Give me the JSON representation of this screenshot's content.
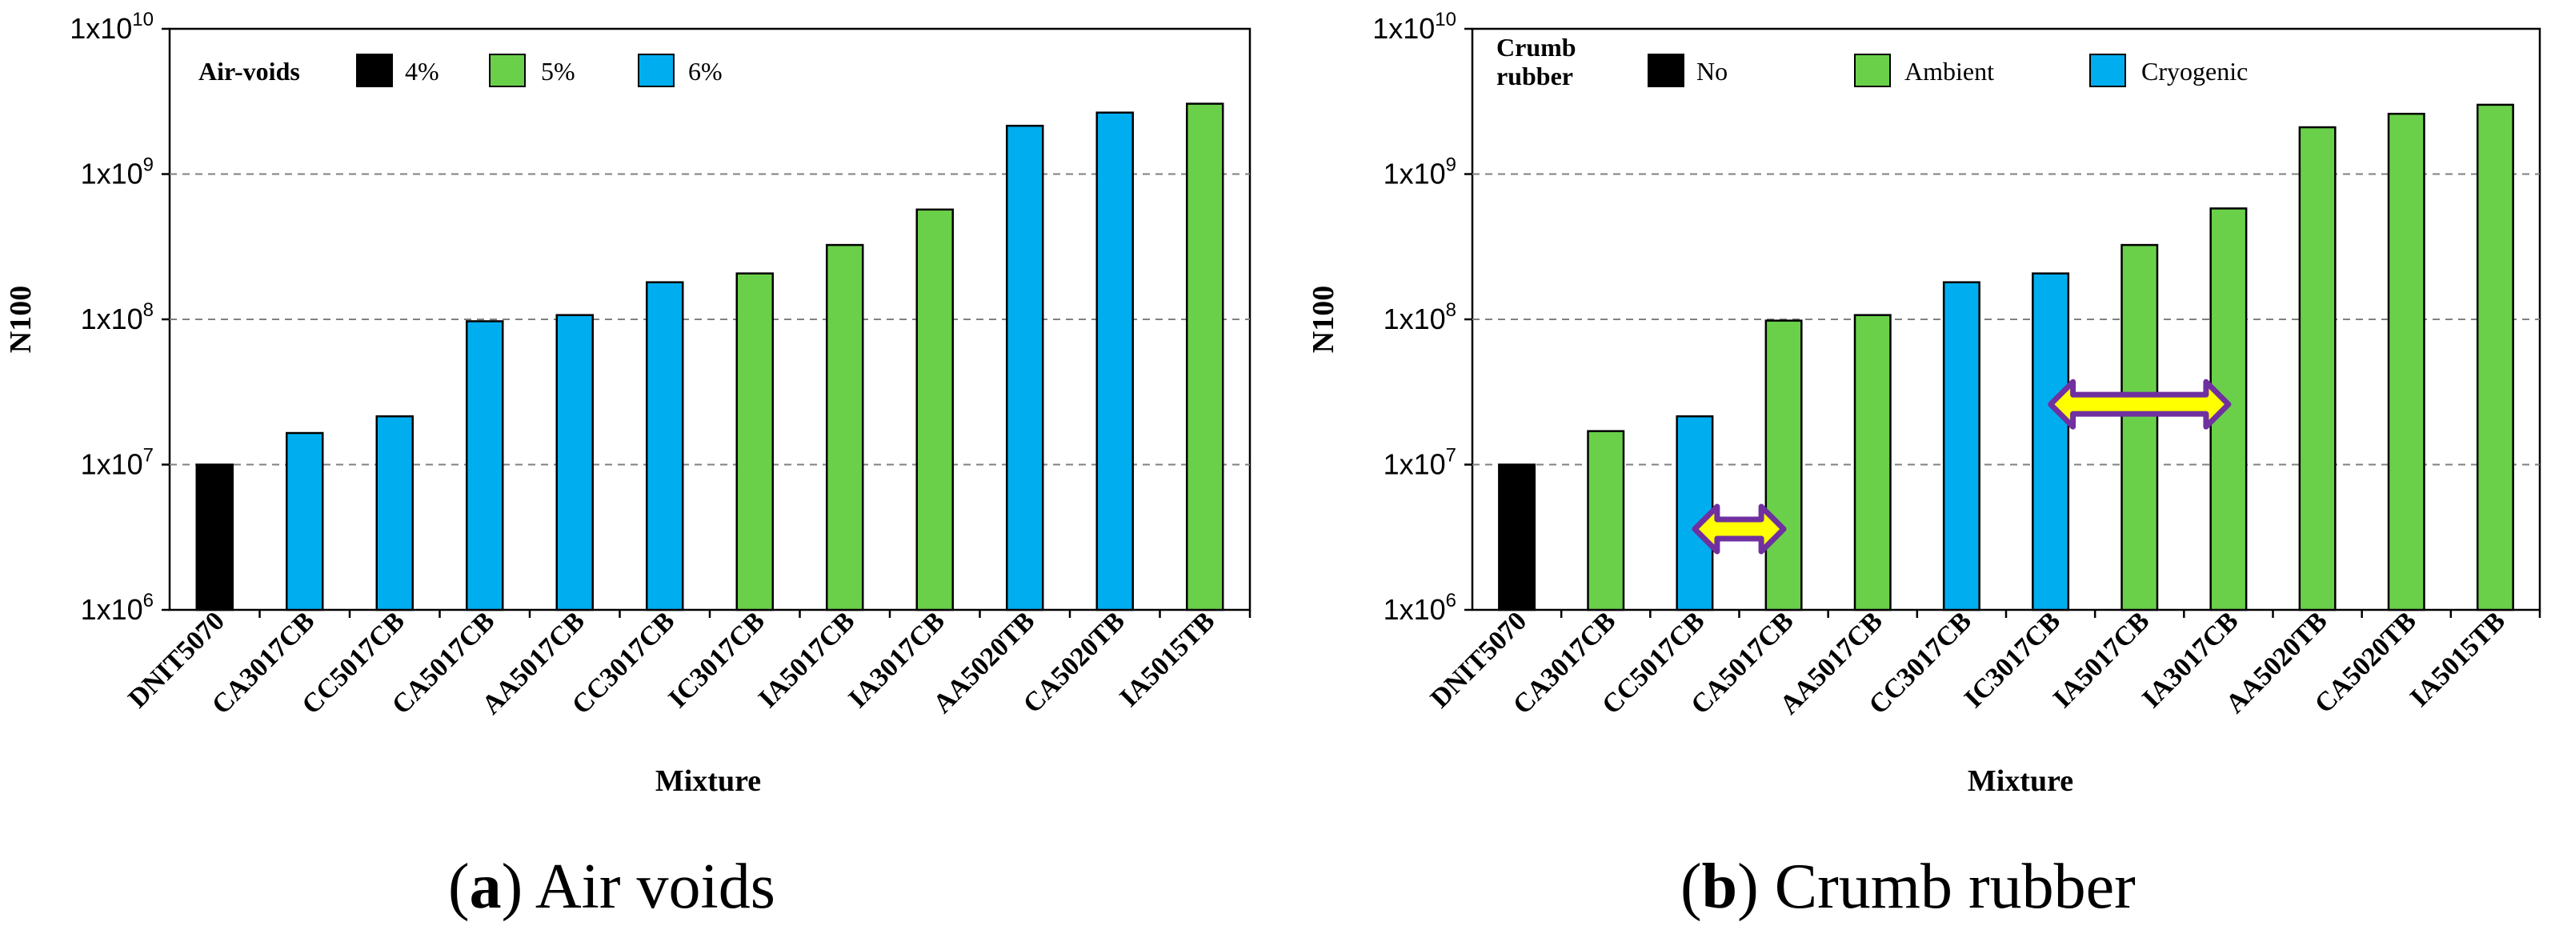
{
  "chart_data": [
    {
      "type": "bar",
      "yscale": "log",
      "ylim": [
        1000000,
        10000000000
      ],
      "ylabel": "N100",
      "xlabel": "Mixture",
      "yticks": [
        {
          "base": "1x10",
          "exp": "6"
        },
        {
          "base": "1x10",
          "exp": "7"
        },
        {
          "base": "1x10",
          "exp": "8"
        },
        {
          "base": "1x10",
          "exp": "9"
        },
        {
          "base": "1x10",
          "exp": "10"
        }
      ],
      "grid": "horizontal-dashed",
      "legend": {
        "title": "Air-voids",
        "entries": [
          {
            "label": "4%",
            "color": "#000000"
          },
          {
            "label": "5%",
            "color": "#6ad04a"
          },
          {
            "label": "6%",
            "color": "#00aeef"
          }
        ]
      },
      "categories": [
        "DNIT5070",
        "CA3017CB",
        "CC5017CB",
        "CA5017CB",
        "AA5017CB",
        "CC3017CB",
        "IC3017CB",
        "IA5017CB",
        "IA3017CB",
        "AA5020TB",
        "CA5020TB",
        "IA5015TB"
      ],
      "values": [
        10000000,
        16500000,
        21500000,
        97000000,
        107000000,
        180000000,
        207000000,
        325000000,
        570000000,
        2150000000,
        2650000000,
        3050000000
      ],
      "groups": [
        "4%",
        "6%",
        "6%",
        "6%",
        "6%",
        "6%",
        "5%",
        "5%",
        "5%",
        "6%",
        "6%",
        "5%"
      ],
      "caption": {
        "letter": "a",
        "text": " Air voids"
      }
    },
    {
      "type": "bar",
      "yscale": "log",
      "ylim": [
        1000000,
        10000000000
      ],
      "ylabel": "N100",
      "xlabel": "Mixture",
      "yticks": [
        {
          "base": "1x10",
          "exp": "6"
        },
        {
          "base": "1x10",
          "exp": "7"
        },
        {
          "base": "1x10",
          "exp": "8"
        },
        {
          "base": "1x10",
          "exp": "9"
        },
        {
          "base": "1x10",
          "exp": "10"
        }
      ],
      "grid": "horizontal-dashed",
      "legend": {
        "title": "Crumb rubber",
        "entries": [
          {
            "label": "No",
            "color": "#000000"
          },
          {
            "label": "Ambient",
            "color": "#6ad04a"
          },
          {
            "label": "Cryogenic",
            "color": "#00aeef"
          }
        ]
      },
      "categories": [
        "DNIT5070",
        "CA3017CB",
        "CC5017CB",
        "CA5017CB",
        "AA5017CB",
        "CC3017CB",
        "IC3017CB",
        "IA5017CB",
        "IA3017CB",
        "AA5020TB",
        "CA5020TB",
        "IA5015TB"
      ],
      "values": [
        10000000,
        17000000,
        21500000,
        98000000,
        107000000,
        180000000,
        207000000,
        325000000,
        580000000,
        2100000000,
        2600000000,
        3000000000
      ],
      "groups": [
        "No",
        "Ambient",
        "Cryogenic",
        "Ambient",
        "Ambient",
        "Cryogenic",
        "Cryogenic",
        "Ambient",
        "Ambient",
        "Ambient",
        "Ambient",
        "Ambient"
      ],
      "annotations": [
        {
          "type": "double-arrow",
          "from_category": 2,
          "to_category": 3,
          "at_value": 3600000,
          "fill": "#ffff00",
          "stroke": "#7030a0"
        },
        {
          "type": "double-arrow",
          "from_category": 6,
          "to_category": 8,
          "at_value": 26000000,
          "fill": "#ffff00",
          "stroke": "#7030a0"
        }
      ],
      "caption": {
        "letter": "b",
        "text": " Crumb rubber"
      }
    }
  ]
}
